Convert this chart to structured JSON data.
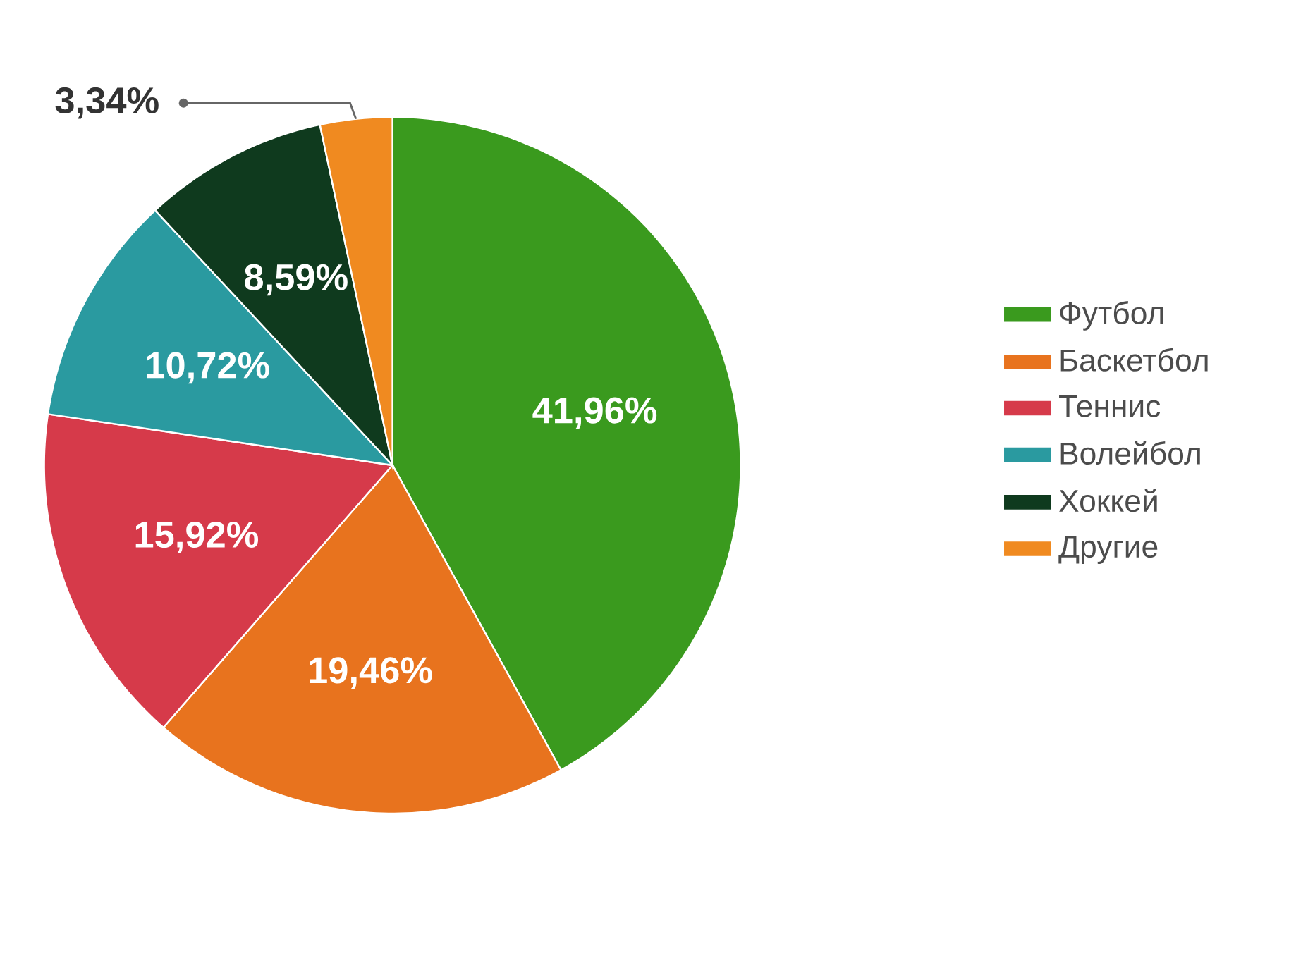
{
  "chart_data": {
    "type": "pie",
    "categories": [
      "Футбол",
      "Баскетбол",
      "Теннис",
      "Волейбол",
      "Хоккей",
      "Другие"
    ],
    "values": [
      41.96,
      19.46,
      15.92,
      10.72,
      8.59,
      3.34
    ],
    "value_labels": [
      "41,96%",
      "19,46%",
      "15,92%",
      "10,72%",
      "8,59%",
      "3,34%"
    ],
    "colors": [
      "#3a9a1e",
      "#e8731e",
      "#d63a4a",
      "#2a9aa0",
      "#0f3a1e",
      "#f08a20"
    ],
    "legend": "right"
  }
}
